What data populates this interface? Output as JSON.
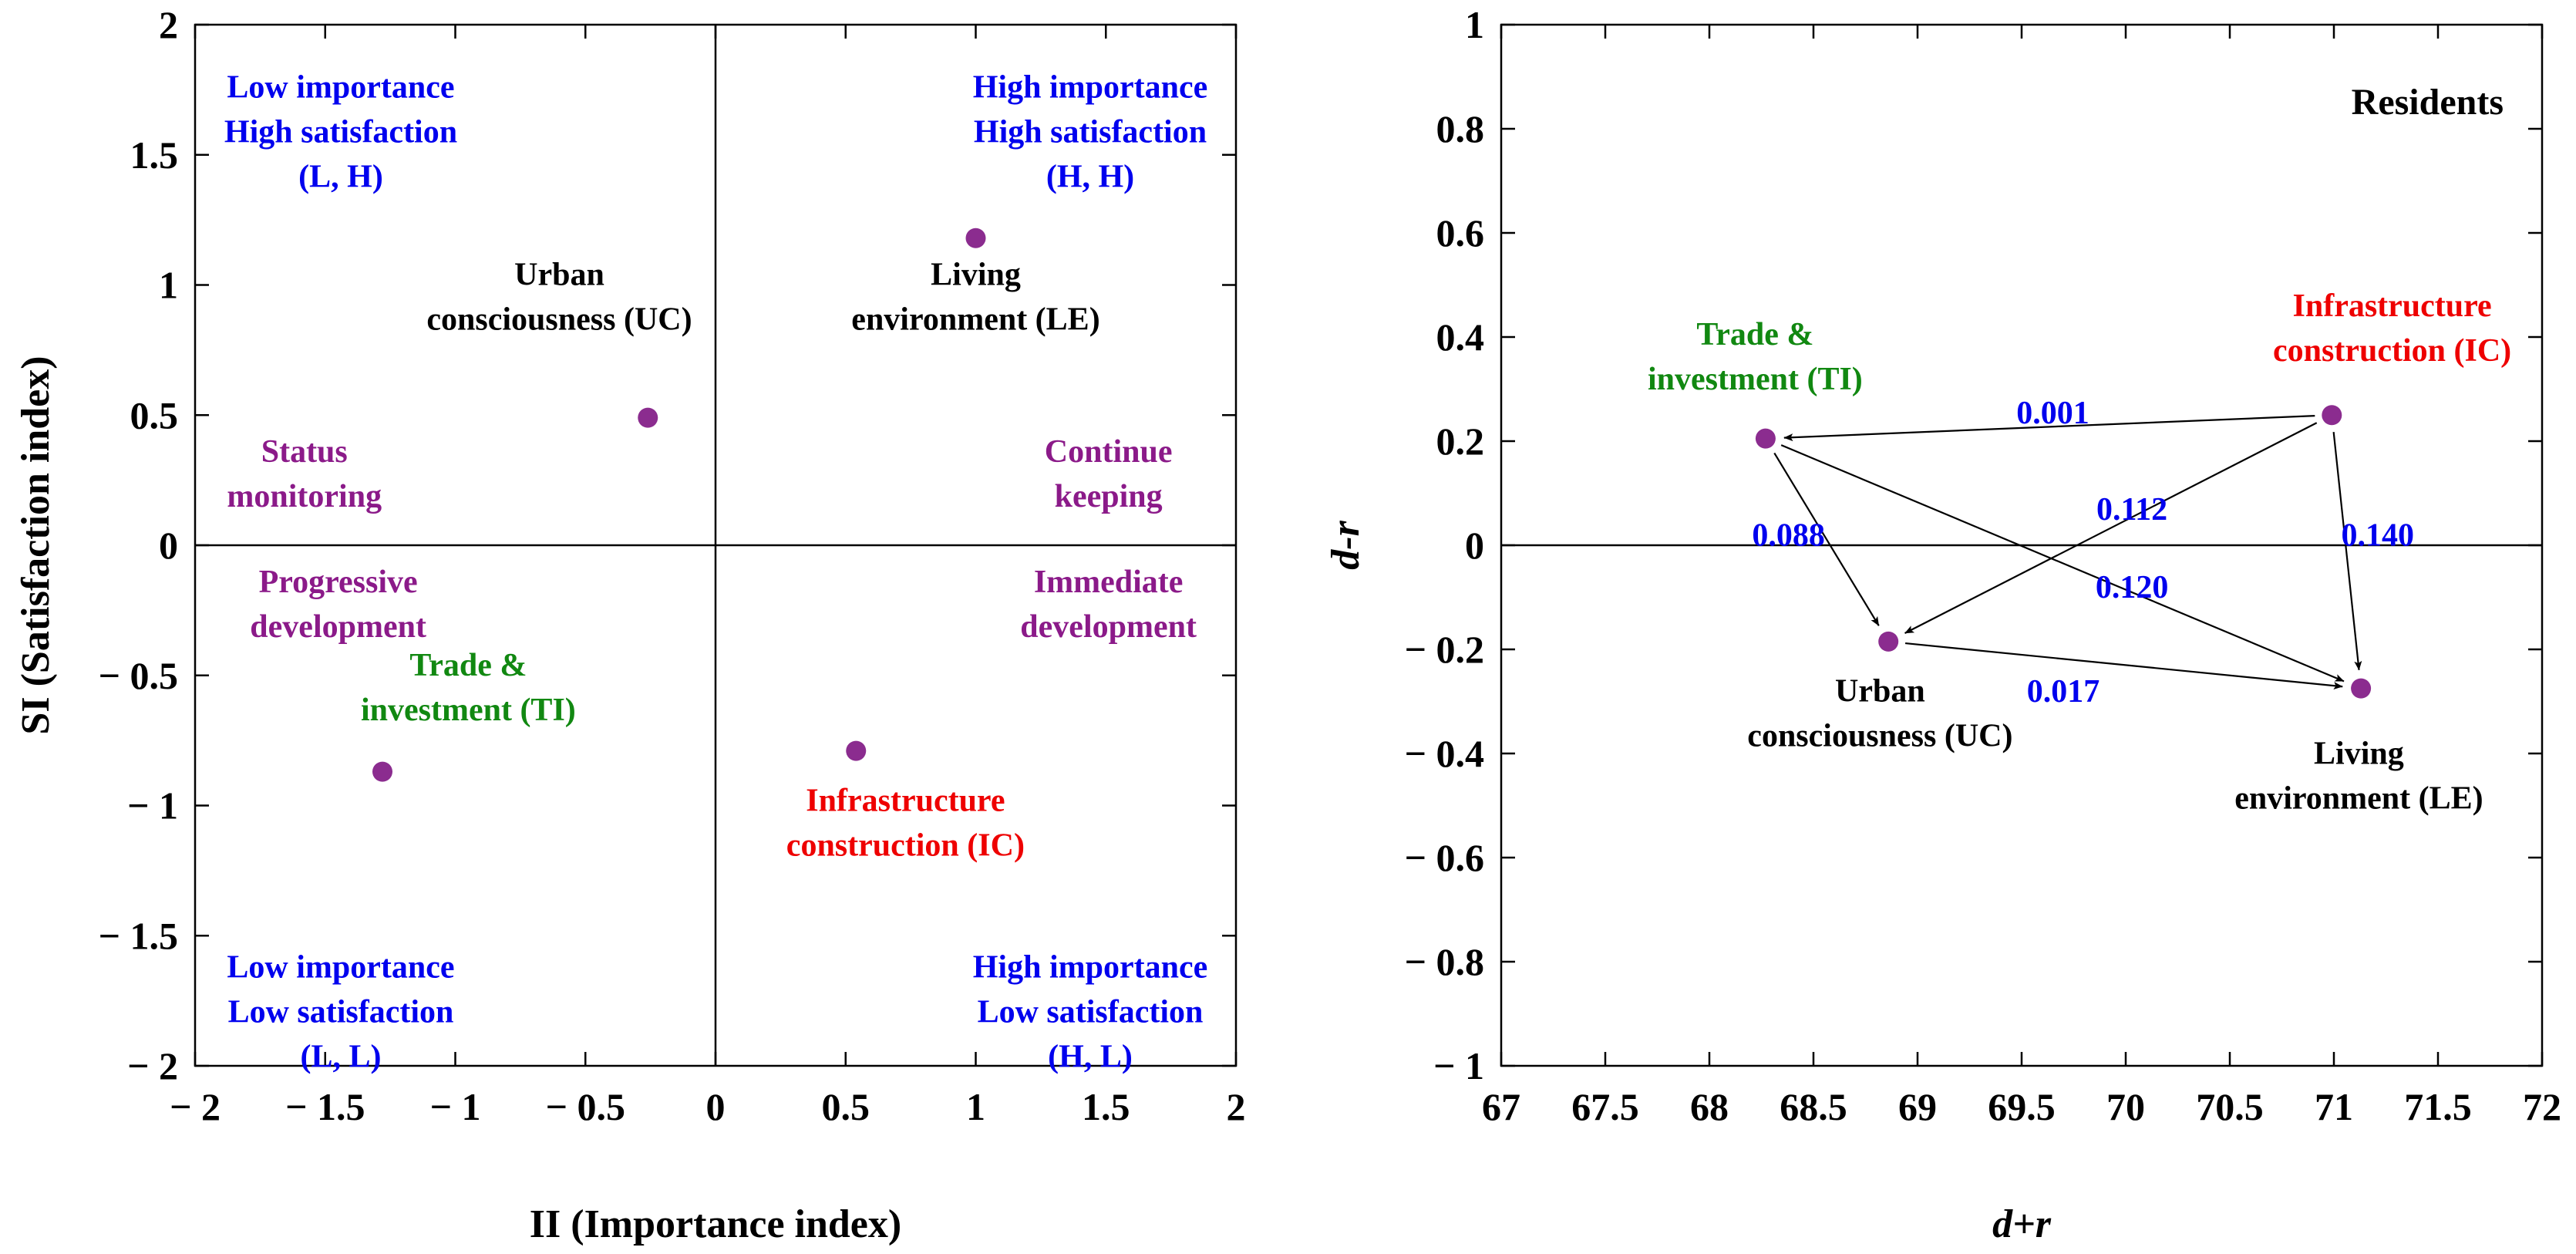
{
  "colors": {
    "quadrant": "#0000ee",
    "strategy": "#8b1a89",
    "point": "#8b2c8f",
    "urban": "#000000",
    "living": "#000000",
    "trade": "#118811",
    "infrastructure": "#ee0000",
    "weight": "#0000ee"
  },
  "chart_data": [
    {
      "type": "scatter",
      "name": "importance-satisfaction-analysis",
      "xlabel": "II (Importance index)",
      "ylabel": "SI (Satisfaction index)",
      "xlim": [
        -2,
        2
      ],
      "ylim": [
        -2,
        2
      ],
      "xticks": [
        -2,
        -1.5,
        -1,
        -0.5,
        0,
        0.5,
        1,
        1.5,
        2
      ],
      "yticks": [
        -2,
        -1.5,
        -1,
        -0.5,
        0,
        0.5,
        1,
        1.5,
        2
      ],
      "xtick_labels": [
        "− 2",
        "− 1.5",
        "− 1",
        "− 0.5",
        "0",
        "0.5",
        "1",
        "1.5",
        "2"
      ],
      "ytick_labels": [
        "− 2",
        "− 1.5",
        "− 1",
        "− 0.5",
        "0",
        "0.5",
        "1",
        "1.5",
        "2"
      ],
      "points": [
        {
          "key": "urban",
          "label": [
            "Urban",
            "consciousness (UC)"
          ],
          "x": -0.26,
          "y": 0.49
        },
        {
          "key": "living",
          "label": [
            "Living",
            "environment (LE)"
          ],
          "x": 1.0,
          "y": 1.18
        },
        {
          "key": "trade",
          "label": [
            "Trade &",
            "investment (TI)"
          ],
          "x": -1.28,
          "y": -0.87
        },
        {
          "key": "infrastructure",
          "label": [
            "Infrastructure",
            "construction (IC)"
          ],
          "x": 0.54,
          "y": -0.79
        }
      ],
      "quadrant_labels": [
        {
          "name": "low-high",
          "lines": [
            "Low importance",
            "High satisfaction",
            "(L, H)"
          ]
        },
        {
          "name": "high-high",
          "lines": [
            "High importance",
            "High satisfaction",
            "(H, H)"
          ]
        },
        {
          "name": "low-low",
          "lines": [
            "Low importance",
            "Low satisfaction",
            "(L, L)"
          ]
        },
        {
          "name": "high-low",
          "lines": [
            "High importance",
            "Low satisfaction",
            "(H, L)"
          ]
        }
      ],
      "strategy_labels": [
        {
          "name": "status-monitoring",
          "lines": [
            "Status",
            "monitoring"
          ]
        },
        {
          "name": "continue-keeping",
          "lines": [
            "Continue",
            "keeping"
          ]
        },
        {
          "name": "progressive-development",
          "lines": [
            "Progressive",
            "development"
          ]
        },
        {
          "name": "immediate-development",
          "lines": [
            "Immediate",
            "development"
          ]
        }
      ]
    },
    {
      "type": "scatter",
      "name": "dematel-causal-diagram",
      "title": "Residents",
      "xlabel": "d+r",
      "ylabel": "d-r",
      "xlim": [
        67,
        72
      ],
      "ylim": [
        -1,
        1
      ],
      "xticks": [
        67,
        67.5,
        68,
        68.5,
        69,
        69.5,
        70,
        70.5,
        71,
        71.5,
        72
      ],
      "yticks": [
        -1,
        -0.8,
        -0.6,
        -0.4,
        -0.2,
        0,
        0.2,
        0.4,
        0.6,
        0.8,
        1
      ],
      "xtick_labels": [
        "67",
        "67.5",
        "68",
        "68.5",
        "69",
        "69.5",
        "70",
        "70.5",
        "71",
        "71.5",
        "72"
      ],
      "ytick_labels": [
        "− 1",
        "− 0.8",
        "− 0.6",
        "− 0.4",
        "− 0.2",
        "0",
        "0.2",
        "0.4",
        "0.6",
        "0.8",
        "1"
      ],
      "points": [
        {
          "key": "trade",
          "label": [
            "Trade &",
            "investment (TI)"
          ],
          "x": 68.27,
          "y": 0.205
        },
        {
          "key": "infrastructure",
          "label": [
            "Infrastructure",
            "construction (IC)"
          ],
          "x": 70.99,
          "y": 0.25
        },
        {
          "key": "urban",
          "label": [
            "Urban",
            "consciousness (UC)"
          ],
          "x": 68.86,
          "y": -0.185
        },
        {
          "key": "living",
          "label": [
            "Living",
            "environment (LE)"
          ],
          "x": 71.13,
          "y": -0.275
        }
      ],
      "links": [
        {
          "from": "infrastructure",
          "to": "trade",
          "weight": "0.001"
        },
        {
          "from": "infrastructure",
          "to": "urban",
          "weight": "0.112"
        },
        {
          "from": "infrastructure",
          "to": "living",
          "weight": "0.140"
        },
        {
          "from": "trade",
          "to": "urban",
          "weight": "0.088"
        },
        {
          "from": "trade",
          "to": "living",
          "weight": "0.120"
        },
        {
          "from": "urban",
          "to": "living",
          "weight": "0.017"
        }
      ]
    }
  ]
}
